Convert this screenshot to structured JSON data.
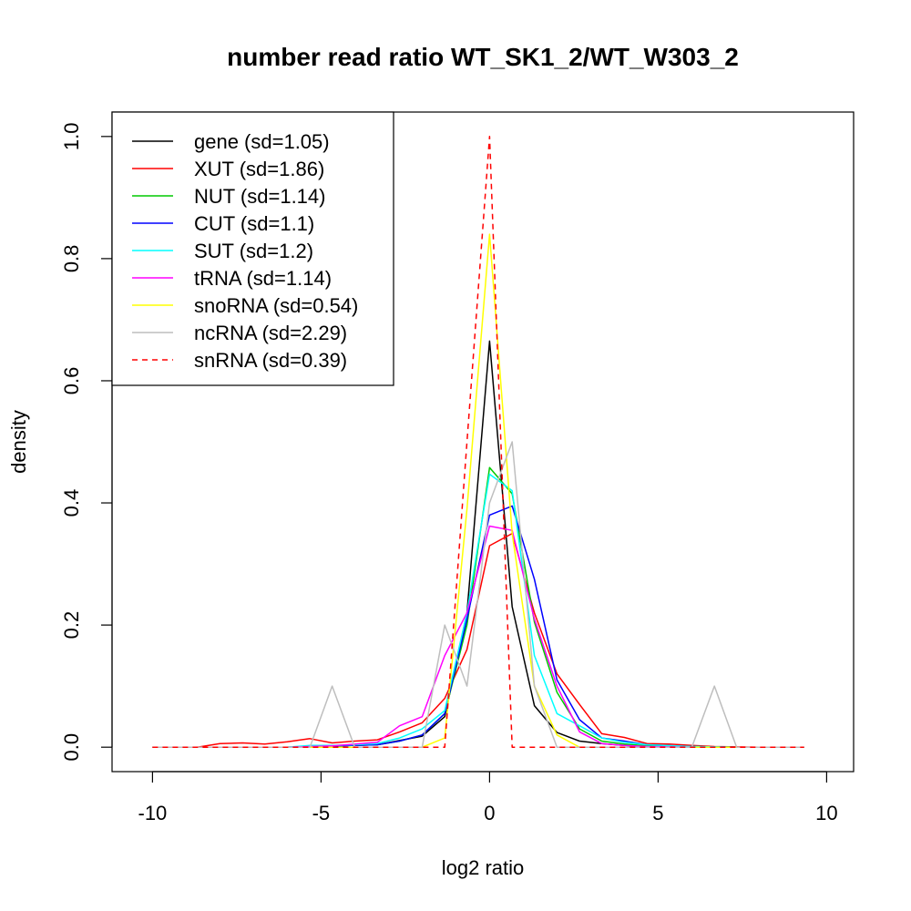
{
  "chart_data": {
    "type": "line",
    "title": "number read ratio WT_SK1_2/WT_W303_2",
    "xlabel": "log2 ratio",
    "ylabel": "density",
    "xlim": [
      -11.2,
      10.8
    ],
    "ylim": [
      -0.04,
      1.04
    ],
    "xticks": [
      -10,
      -5,
      0,
      5,
      10
    ],
    "xtick_labels": [
      "-10",
      "-5",
      "0",
      "5",
      "10"
    ],
    "yticks": [
      0.0,
      0.2,
      0.4,
      0.6,
      0.8,
      1.0
    ],
    "ytick_labels": [
      "0.0",
      "0.2",
      "0.4",
      "0.6",
      "0.8",
      "1.0"
    ],
    "grid": false,
    "legend_position": "top-left",
    "series": [
      {
        "name": "gene (sd=1.05)",
        "color": "#000000",
        "dash": "solid",
        "x": [
          -10,
          -8.67,
          -7.33,
          -6,
          -4.67,
          -3.33,
          -2,
          -1.33,
          -0.67,
          0,
          0.67,
          1.33,
          2,
          2.67,
          3.33,
          4,
          4.67,
          6,
          7.33,
          9.33
        ],
        "y": [
          0,
          0,
          0,
          0,
          0.002,
          0.004,
          0.018,
          0.05,
          0.22,
          0.665,
          0.23,
          0.068,
          0.024,
          0.01,
          0.006,
          0.003,
          0.001,
          0,
          0,
          0
        ]
      },
      {
        "name": "XUT (sd=1.86)",
        "color": "#ff0000",
        "dash": "solid",
        "x": [
          -10,
          -8.67,
          -8,
          -7.33,
          -6.67,
          -6,
          -5.33,
          -4.67,
          -4,
          -3.33,
          -2.67,
          -2,
          -1.33,
          -0.67,
          0,
          0.67,
          1.33,
          2,
          2.67,
          3.33,
          4,
          4.67,
          5.33,
          6,
          6.67,
          8,
          9.33
        ],
        "y": [
          0,
          0,
          0.006,
          0.007,
          0.005,
          0.009,
          0.014,
          0.007,
          0.01,
          0.012,
          0.025,
          0.04,
          0.08,
          0.16,
          0.33,
          0.35,
          0.22,
          0.12,
          0.07,
          0.022,
          0.016,
          0.006,
          0.005,
          0.003,
          0.001,
          0,
          0
        ]
      },
      {
        "name": "NUT (sd=1.14)",
        "color": "#00c800",
        "dash": "solid",
        "x": [
          -10,
          -8.67,
          -7.33,
          -6,
          -4.67,
          -3.33,
          -2.67,
          -2,
          -1.33,
          -0.67,
          0,
          0.67,
          1.33,
          2,
          2.67,
          3.33,
          4,
          4.67,
          6,
          7.33,
          9.33
        ],
        "y": [
          0,
          0,
          0,
          0,
          0.002,
          0.004,
          0.01,
          0.02,
          0.055,
          0.2,
          0.458,
          0.415,
          0.205,
          0.09,
          0.03,
          0.01,
          0.005,
          0.002,
          0.001,
          0,
          0
        ]
      },
      {
        "name": "CUT (sd=1.1)",
        "color": "#0000ff",
        "dash": "solid",
        "x": [
          -10,
          -8.67,
          -7.33,
          -6,
          -4.67,
          -3.33,
          -2.67,
          -2,
          -1.33,
          -0.67,
          0,
          0.67,
          1.33,
          2,
          2.67,
          3.33,
          4,
          4.67,
          6,
          7.33,
          9.33
        ],
        "y": [
          0,
          0,
          0,
          0,
          0.002,
          0.004,
          0.01,
          0.02,
          0.055,
          0.21,
          0.38,
          0.395,
          0.275,
          0.11,
          0.045,
          0.015,
          0.01,
          0.004,
          0.001,
          0,
          0
        ]
      },
      {
        "name": "SUT (sd=1.2)",
        "color": "#00ffff",
        "dash": "solid",
        "x": [
          -10,
          -8.67,
          -7.33,
          -6,
          -5.33,
          -4.67,
          -4,
          -3.33,
          -2.67,
          -2,
          -1.33,
          -0.67,
          0,
          0.67,
          1.33,
          2,
          2.67,
          3.33,
          4,
          4.67,
          6,
          7.33,
          9.33
        ],
        "y": [
          0,
          0,
          0,
          0,
          0.003,
          0.003,
          0.004,
          0.006,
          0.015,
          0.03,
          0.06,
          0.22,
          0.447,
          0.42,
          0.15,
          0.055,
          0.035,
          0.015,
          0.008,
          0.004,
          0.001,
          0,
          0
        ]
      },
      {
        "name": "tRNA (sd=1.14)",
        "color": "#ff00ff",
        "dash": "solid",
        "x": [
          -10,
          -8.67,
          -7.33,
          -6,
          -4.67,
          -3.33,
          -2.67,
          -2,
          -1.33,
          -0.67,
          0,
          0.67,
          1.33,
          2,
          2.67,
          3.33,
          4,
          4.67,
          6,
          7.33,
          9.33
        ],
        "y": [
          0,
          0,
          0,
          0,
          0.002,
          0.008,
          0.035,
          0.05,
          0.15,
          0.22,
          0.362,
          0.355,
          0.21,
          0.1,
          0.025,
          0.006,
          0.003,
          0.001,
          0,
          0,
          0
        ]
      },
      {
        "name": "snoRNA (sd=0.54)",
        "color": "#ffff00",
        "dash": "solid",
        "x": [
          -10,
          -8.67,
          -7.33,
          -6,
          -4.67,
          -3.33,
          -2,
          -1.33,
          -0.67,
          0,
          0.67,
          1.33,
          2,
          2.67,
          4,
          6,
          9.33
        ],
        "y": [
          0,
          0,
          0,
          0,
          0,
          0,
          0,
          0.015,
          0.39,
          0.84,
          0.35,
          0.1,
          0.02,
          0,
          0,
          0,
          0
        ]
      },
      {
        "name": "ncRNA (sd=2.29)",
        "color": "#bebebe",
        "dash": "solid",
        "x": [
          -10,
          -8.67,
          -7.33,
          -6,
          -5.33,
          -4.67,
          -4,
          -3.33,
          -2.67,
          -2,
          -1.33,
          -0.67,
          0,
          0.67,
          1.33,
          2,
          2.67,
          4,
          5.33,
          6,
          6.67,
          7.33,
          9.33
        ],
        "y": [
          0,
          0,
          0,
          0,
          0,
          0.1,
          0,
          0,
          0,
          0,
          0.2,
          0.1,
          0.4,
          0.5,
          0.1,
          0,
          0,
          0,
          0,
          0,
          0.1,
          0,
          0
        ]
      },
      {
        "name": "snRNA (sd=0.39)",
        "color": "#ff0000",
        "dash": "dashed",
        "x": [
          -10,
          -8.67,
          -7.33,
          -6,
          -4.67,
          -3.33,
          -2,
          -1.33,
          -0.67,
          0,
          0.67,
          1.33,
          2,
          4,
          6,
          9.33
        ],
        "y": [
          0,
          0,
          0,
          0,
          0,
          0,
          0,
          0,
          0.5,
          1.0,
          0,
          0,
          0,
          0,
          0,
          0
        ]
      }
    ]
  }
}
